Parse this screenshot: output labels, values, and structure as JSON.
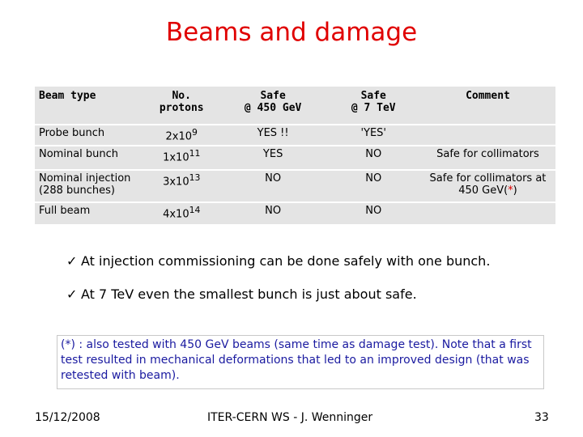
{
  "title": "Beams and damage",
  "table": {
    "headers": [
      "Beam type",
      "No. protons",
      "Safe @ 450 GeV",
      "Safe @ 7 TeV",
      "Comment"
    ],
    "header_lines": {
      "protons": [
        "No.",
        "protons"
      ],
      "safe450": [
        "Safe",
        "@ 450 GeV"
      ],
      "safe7": [
        "Safe",
        "@ 7 TeV"
      ]
    },
    "rows": [
      {
        "type": "Probe bunch",
        "protons_base": "2x10",
        "protons_exp": "9",
        "safe450": "YES !!",
        "safe7": "'YES'",
        "comment": ""
      },
      {
        "type": "Nominal bunch",
        "protons_base": "1x10",
        "protons_exp": "11",
        "safe450": "YES",
        "safe7": "NO",
        "comment": "Safe for collimators"
      },
      {
        "type_line1": "Nominal injection",
        "type_line2": "(288 bunches)",
        "protons_base": "3x10",
        "protons_exp": "13",
        "safe450": "NO",
        "safe7": "NO",
        "comment_line1": "Safe for collimators at",
        "comment_line2_a": "450 GeV(",
        "comment_star": "*",
        "comment_line2_b": ")"
      },
      {
        "type": "Full beam",
        "protons_base": "4x10",
        "protons_exp": "14",
        "safe450": "NO",
        "safe7": "NO",
        "comment": ""
      }
    ]
  },
  "bullets": [
    "At injection commissioning can be done safely with one bunch.",
    "At 7 TeV even the smallest bunch is just about safe."
  ],
  "bullet_glyph": "✓",
  "note": "(*) : also tested with 450 GeV beams (same time as damage test). Note that a first test resulted in mechanical deformations that led to an improved design (that was retested with beam).",
  "footer": {
    "date": "15/12/2008",
    "center": "ITER-CERN WS - J. Wenninger",
    "page": "33"
  },
  "colors": {
    "title": "#e00000",
    "note_text": "#1a1aa0",
    "table_bg": "#e4e4e4"
  }
}
